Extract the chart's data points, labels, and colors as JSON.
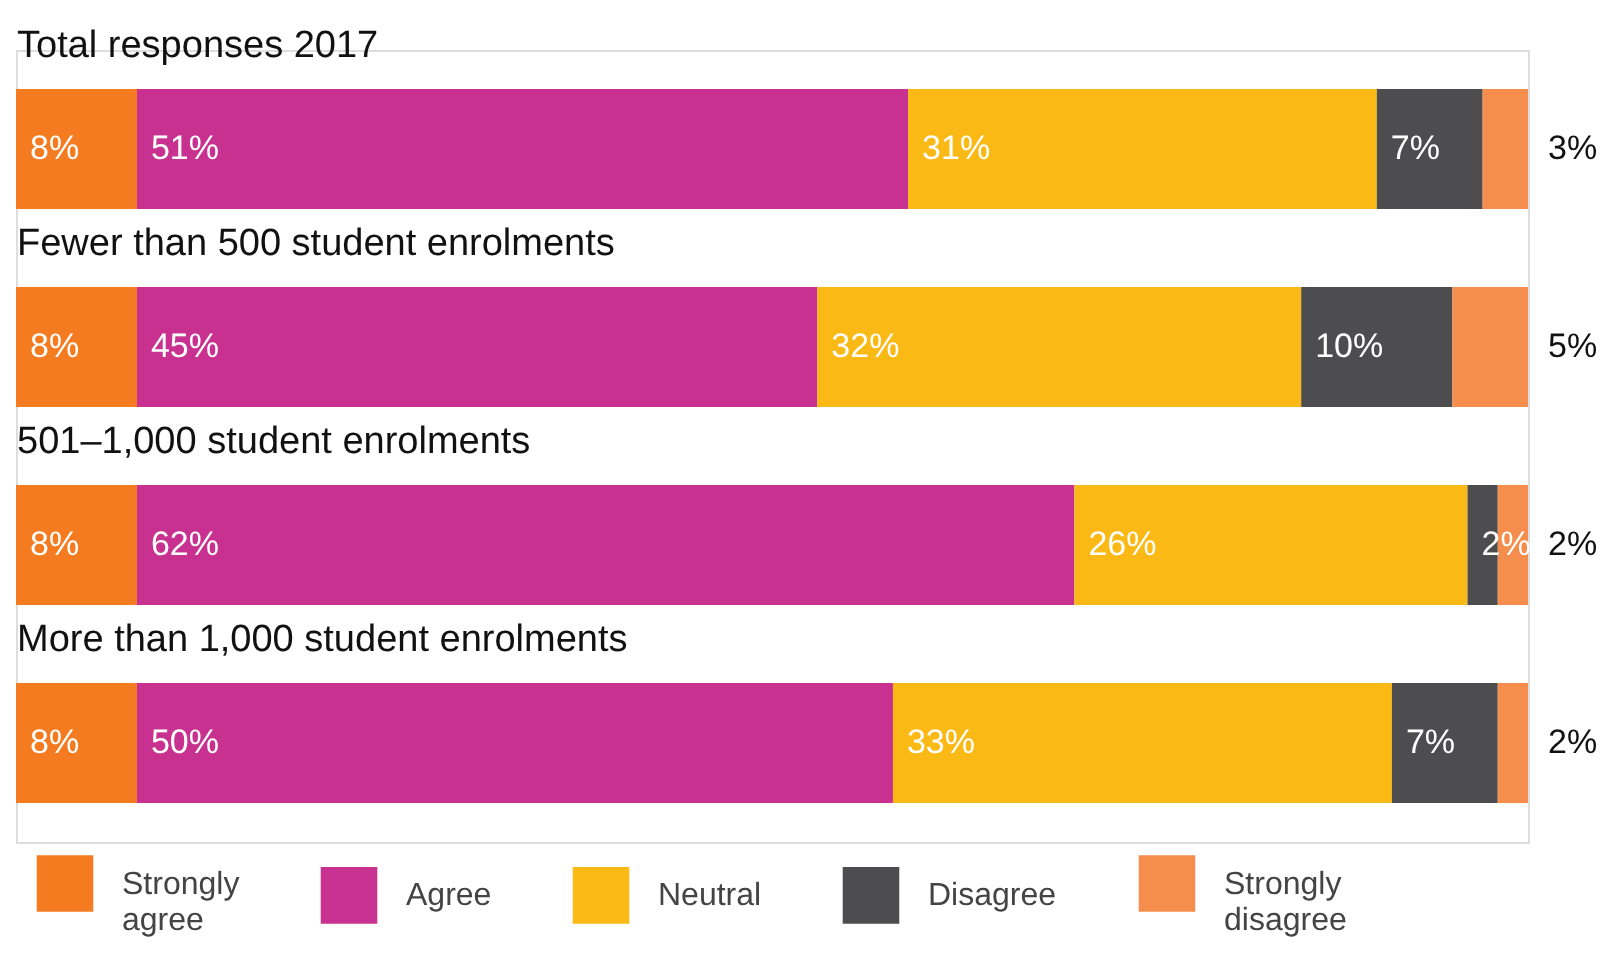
{
  "chart_data": {
    "type": "bar",
    "orientation": "horizontal",
    "stacked": true,
    "categories": [
      "Total responses 2017",
      "Fewer than 500 student enrolments",
      "501–1,000 student enrolments",
      "More than 1,000 student enrolments"
    ],
    "series": [
      {
        "name": "Strongly agree",
        "color": "#f47b20",
        "values": [
          8,
          8,
          8,
          8
        ],
        "value_labels": [
          "8%",
          "8%",
          "8%",
          "8%"
        ]
      },
      {
        "name": "Agree",
        "color": "#c8318f",
        "values": [
          51,
          45,
          62,
          50
        ],
        "value_labels": [
          "51%",
          "45%",
          "62%",
          "50%"
        ]
      },
      {
        "name": "Neutral",
        "color": "#fbb915",
        "values": [
          31,
          32,
          26,
          33
        ],
        "value_labels": [
          "31%",
          "32%",
          "26%",
          "33%"
        ]
      },
      {
        "name": "Disagree",
        "color": "#4d4d4f",
        "values": [
          7,
          10,
          2,
          7
        ],
        "value_labels": [
          "7%",
          "10%",
          "2%",
          "7%"
        ]
      },
      {
        "name": "Strongly disagree",
        "color": "#f58e4d",
        "values": [
          3,
          5,
          2,
          2
        ],
        "value_labels": [
          "3%",
          "5%",
          "2%",
          "2%"
        ]
      }
    ],
    "xlim": [
      0,
      100
    ],
    "tick_labels": "y",
    "grid": false,
    "legend": "bottom"
  }
}
